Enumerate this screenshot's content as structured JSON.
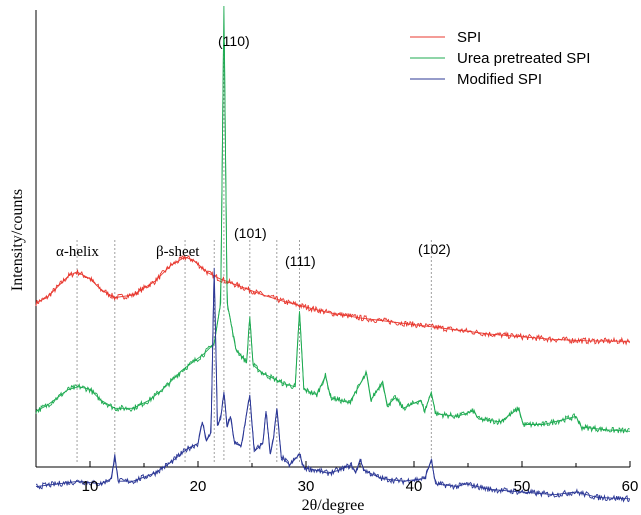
{
  "chart_data": {
    "type": "line",
    "xlabel": "2θ/degree",
    "ylabel": "Intensity/counts",
    "xlim": [
      5,
      60
    ],
    "x_ticks": [
      "10",
      "20",
      "30",
      "40",
      "50",
      "60"
    ],
    "y_ticks": "none",
    "grid": false,
    "legend_position": "top-right",
    "series": [
      {
        "name": "SPI",
        "color": "#e8382f",
        "points": [
          [
            5,
            1.0
          ],
          [
            6,
            1.2
          ],
          [
            7,
            1.6
          ],
          [
            8,
            2.0
          ],
          [
            8.8,
            2.15
          ],
          [
            10,
            1.9
          ],
          [
            11,
            1.5
          ],
          [
            12.3,
            1.2
          ],
          [
            14,
            1.3
          ],
          [
            16,
            1.8
          ],
          [
            17.5,
            2.4
          ],
          [
            18.8,
            2.7
          ],
          [
            19.5,
            2.6
          ],
          [
            21,
            2.1
          ],
          [
            22,
            1.9
          ],
          [
            24,
            1.6
          ],
          [
            26,
            1.3
          ],
          [
            28,
            1.05
          ],
          [
            30,
            0.85
          ],
          [
            32,
            0.65
          ],
          [
            35,
            0.45
          ],
          [
            38,
            0.3
          ],
          [
            41,
            0.15
          ],
          [
            44,
            0.0
          ],
          [
            47,
            -0.15
          ],
          [
            50,
            -0.25
          ],
          [
            53,
            -0.35
          ],
          [
            56,
            -0.4
          ],
          [
            60,
            -0.42
          ]
        ]
      },
      {
        "name": "Urea pretreated SPI",
        "color": "#1fab52",
        "points": [
          [
            5,
            -3.0
          ],
          [
            6,
            -2.8
          ],
          [
            7,
            -2.5
          ],
          [
            8,
            -2.2
          ],
          [
            9,
            -2.1
          ],
          [
            10,
            -2.2
          ],
          [
            11,
            -2.6
          ],
          [
            12.3,
            -2.9
          ],
          [
            14,
            -2.9
          ],
          [
            15.5,
            -2.6
          ],
          [
            17,
            -2.1
          ],
          [
            18.5,
            -1.5
          ],
          [
            19.5,
            -1.2
          ],
          [
            20.5,
            -0.9
          ],
          [
            21.5,
            -0.5
          ],
          [
            22.1,
            1.0
          ],
          [
            22.4,
            12.0
          ],
          [
            22.7,
            1.0
          ],
          [
            23.5,
            -0.7
          ],
          [
            24.5,
            -1.2
          ],
          [
            24.8,
            0.5
          ],
          [
            25.1,
            -1.3
          ],
          [
            26,
            -1.6
          ],
          [
            27,
            -1.8
          ],
          [
            28,
            -2.0
          ],
          [
            29.0,
            -2.1
          ],
          [
            29.4,
            0.7
          ],
          [
            29.8,
            -2.2
          ],
          [
            31,
            -2.4
          ],
          [
            31.8,
            -1.7
          ],
          [
            32.3,
            -2.5
          ],
          [
            34,
            -2.7
          ],
          [
            35.6,
            -1.6
          ],
          [
            36.0,
            -2.6
          ],
          [
            37.1,
            -1.9
          ],
          [
            37.5,
            -2.8
          ],
          [
            38.3,
            -2.5
          ],
          [
            39,
            -2.9
          ],
          [
            40.6,
            -2.6
          ],
          [
            41.0,
            -3.0
          ],
          [
            41.6,
            -2.3
          ],
          [
            42,
            -3.1
          ],
          [
            44,
            -3.2
          ],
          [
            45.5,
            -3.0
          ],
          [
            46,
            -3.3
          ],
          [
            48,
            -3.4
          ],
          [
            49.7,
            -2.9
          ],
          [
            50.1,
            -3.5
          ],
          [
            52,
            -3.5
          ],
          [
            55,
            -3.2
          ],
          [
            55.5,
            -3.6
          ],
          [
            58,
            -3.7
          ],
          [
            60,
            -3.75
          ]
        ]
      },
      {
        "name": "Modified SPI",
        "color": "#2c3896",
        "points": [
          [
            5,
            -5.8
          ],
          [
            7,
            -5.7
          ],
          [
            9,
            -5.6
          ],
          [
            11,
            -5.7
          ],
          [
            12.0,
            -5.5
          ],
          [
            12.3,
            -4.6
          ],
          [
            12.6,
            -5.6
          ],
          [
            14,
            -5.6
          ],
          [
            16,
            -5.3
          ],
          [
            17.5,
            -4.9
          ],
          [
            19,
            -4.4
          ],
          [
            20.0,
            -4.2
          ],
          [
            20.4,
            -3.4
          ],
          [
            20.8,
            -4.1
          ],
          [
            21.2,
            -3.8
          ],
          [
            21.5,
            2.3
          ],
          [
            21.8,
            -3.5
          ],
          [
            22.1,
            -3.3
          ],
          [
            22.4,
            -2.3
          ],
          [
            22.7,
            -3.6
          ],
          [
            23.0,
            -3.2
          ],
          [
            23.4,
            -4.2
          ],
          [
            24.0,
            -4.3
          ],
          [
            24.8,
            -2.4
          ],
          [
            25.2,
            -4.5
          ],
          [
            26.0,
            -4.2
          ],
          [
            26.3,
            -3.0
          ],
          [
            26.7,
            -4.6
          ],
          [
            27.0,
            -4.0
          ],
          [
            27.3,
            -2.9
          ],
          [
            27.7,
            -4.7
          ],
          [
            28.5,
            -5.0
          ],
          [
            29.4,
            -4.6
          ],
          [
            29.8,
            -5.1
          ],
          [
            31,
            -5.2
          ],
          [
            32,
            -5.3
          ],
          [
            33.0,
            -5.2
          ],
          [
            34.2,
            -5.0
          ],
          [
            34.6,
            -5.3
          ],
          [
            35.0,
            -4.8
          ],
          [
            35.4,
            -5.2
          ],
          [
            37,
            -5.5
          ],
          [
            39,
            -5.6
          ],
          [
            41,
            -5.5
          ],
          [
            41.6,
            -4.8
          ],
          [
            42,
            -5.7
          ],
          [
            44,
            -5.8
          ],
          [
            44.8,
            -5.7
          ],
          [
            47,
            -5.9
          ],
          [
            50,
            -6.0
          ],
          [
            53,
            -6.1
          ],
          [
            55,
            -6.0
          ],
          [
            57,
            -6.2
          ],
          [
            60,
            -6.25
          ]
        ]
      }
    ],
    "reference_lines_x": [
      8.8,
      12.3,
      18.8,
      21.5,
      22.4,
      24.8,
      27.3,
      29.4,
      41.6
    ],
    "annotations": {
      "alpha_helix": "α-helix",
      "beta_sheet": "β-sheet",
      "peak_110": "(110)",
      "peak_101": "(101)",
      "peak_111": "(111)",
      "peak_102": "(102)"
    }
  }
}
